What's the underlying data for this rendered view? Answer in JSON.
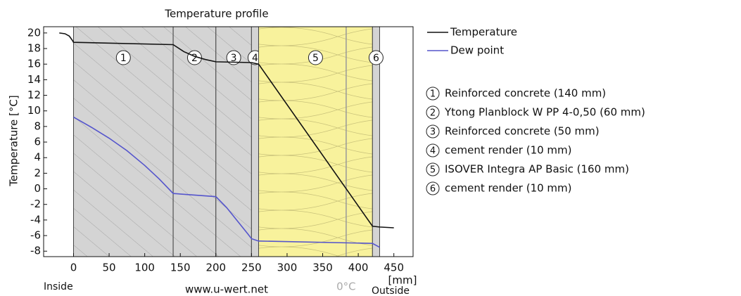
{
  "chart_data": {
    "type": "line",
    "title": "Temperature profile",
    "y_label": "Temperature  [°C]",
    "x_unit": "[mm]",
    "xlim": [
      -42,
      477
    ],
    "ylim": [
      -8.7,
      20.8
    ],
    "xticks": [
      0,
      50,
      100,
      150,
      200,
      250,
      300,
      350,
      400,
      450
    ],
    "yticks": [
      -8,
      -6,
      -4,
      -2,
      0,
      2,
      4,
      6,
      8,
      10,
      12,
      14,
      16,
      18,
      20
    ],
    "series": [
      {
        "name": "Temperature",
        "color": "#111111",
        "x": [
          -20,
          -12,
          -6,
          -2,
          0,
          140,
          155,
          170,
          185,
          200,
          250,
          260,
          420,
          430,
          450
        ],
        "values": [
          20,
          19.9,
          19.6,
          19.1,
          18.8,
          18.5,
          17.6,
          17.0,
          16.6,
          16.3,
          16.2,
          16.0,
          -4.8,
          -4.9,
          -5.0
        ]
      },
      {
        "name": "Dew point",
        "color": "#5555cc",
        "x": [
          0,
          25,
          50,
          75,
          100,
          120,
          140,
          200,
          215,
          230,
          245,
          250,
          260,
          420,
          430
        ],
        "values": [
          9.2,
          7.9,
          6.5,
          4.9,
          3.0,
          1.3,
          -0.6,
          -1.0,
          -2.4,
          -4.1,
          -5.8,
          -6.4,
          -6.7,
          -7.0,
          -7.5
        ]
      }
    ],
    "layers": [
      {
        "number": "1",
        "label": "Reinforced concrete (140 mm)",
        "start": 0,
        "end": 140,
        "color": "#d4d4d4",
        "pattern": "hatch"
      },
      {
        "number": "2",
        "label": "Ytong Planblock W PP 4-0,50 (60 mm)",
        "start": 140,
        "end": 200,
        "color": "#d4d4d4",
        "pattern": "hatch"
      },
      {
        "number": "3",
        "label": "Reinforced concrete (50 mm)",
        "start": 200,
        "end": 250,
        "color": "#d4d4d4",
        "pattern": "hatch"
      },
      {
        "number": "4",
        "label": "cement render (10 mm)",
        "start": 250,
        "end": 260,
        "color": "#d4d4d4",
        "pattern": "none"
      },
      {
        "number": "5",
        "label": "ISOVER Integra AP Basic (160 mm)",
        "start": 260,
        "end": 420,
        "color": "#f8f29c",
        "pattern": "loops"
      },
      {
        "number": "6",
        "label": "cement render (10 mm)",
        "start": 420,
        "end": 430,
        "color": "#d4d4d4",
        "pattern": "none"
      }
    ],
    "zero_line": {
      "value": 383,
      "label": "0°C"
    },
    "inside_label": "Inside",
    "outside_label": "Outside",
    "website": "www.u-wert.net"
  }
}
